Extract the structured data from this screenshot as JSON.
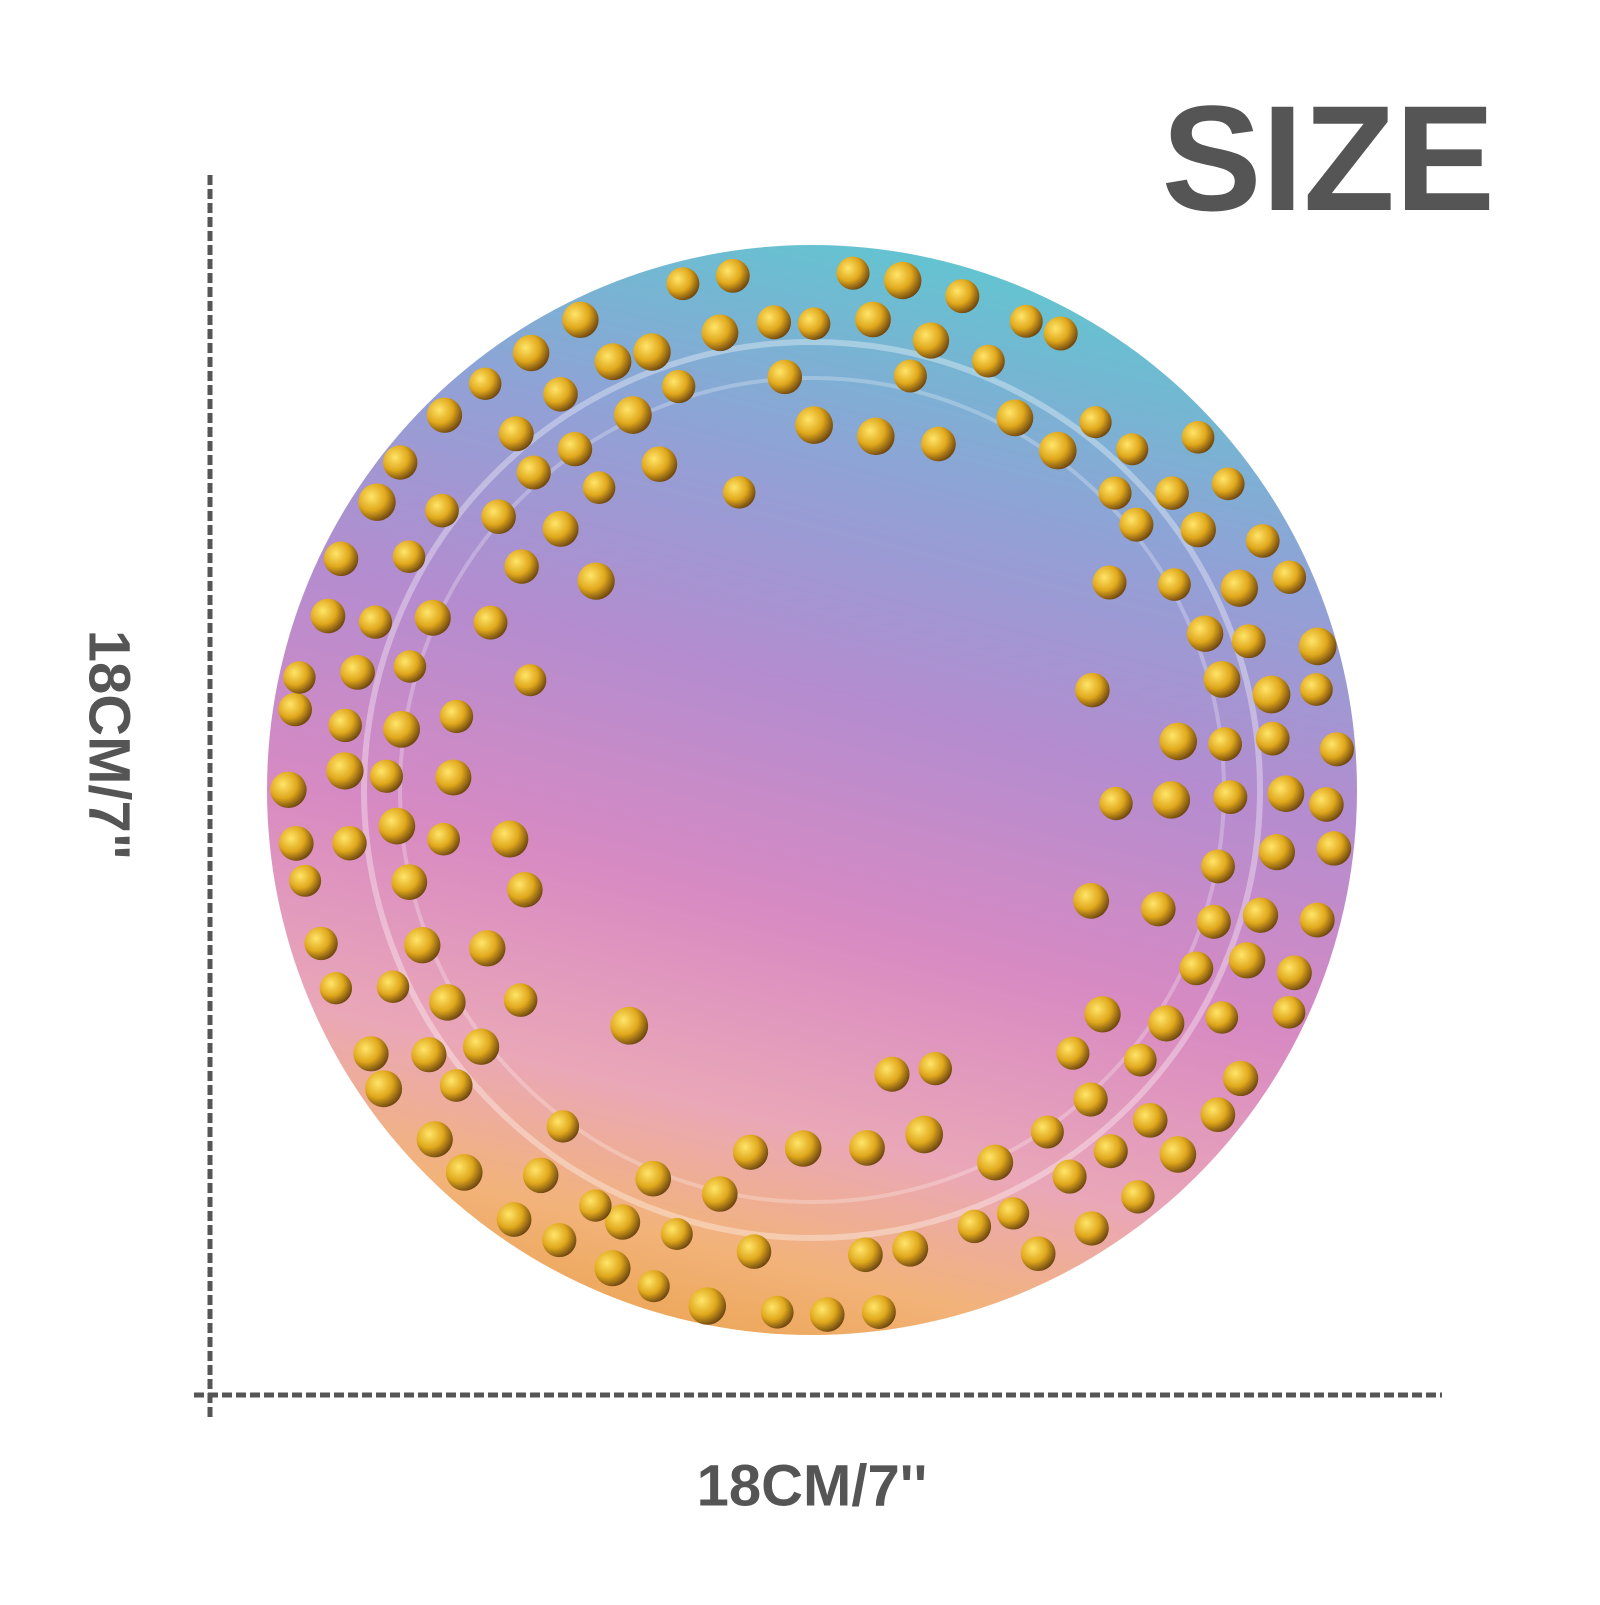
{
  "title": "SIZE",
  "height_label": "18CM/7\"",
  "width_label": "18CM/7''"
}
